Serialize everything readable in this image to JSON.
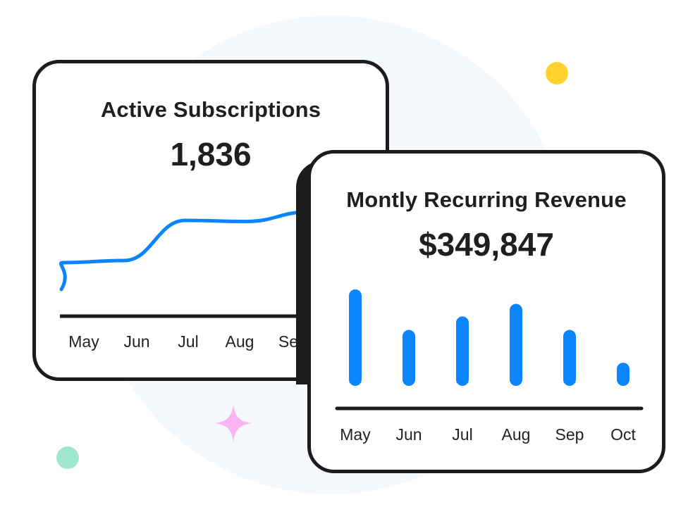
{
  "colors": {
    "accent": "#0a84ff",
    "axis": "#1c1c1c",
    "dot_yellow": "#ffd22e",
    "dot_teal": "#9ee6d0",
    "sparkle": "#f7b4f0",
    "background_circle": "#f5f8fc"
  },
  "subscriptions_card": {
    "title": "Active Subscriptions",
    "value": "1,836"
  },
  "revenue_card": {
    "title": "Montly Recurring Revenue",
    "value": "$349,847"
  },
  "chart_data": [
    {
      "type": "line",
      "categories": [
        "May",
        "Jun",
        "Jul",
        "Aug",
        "Sep"
      ],
      "tick_labels_visible": [
        "May",
        "Jun",
        "Jul",
        "Aug",
        "Se"
      ],
      "values": [
        38,
        40,
        78,
        77,
        86
      ],
      "ylim": [
        0,
        100
      ],
      "grid": false,
      "legend": "none"
    },
    {
      "type": "bar",
      "categories": [
        "May",
        "Jun",
        "Jul",
        "Aug",
        "Sep",
        "Oct"
      ],
      "values": [
        100,
        58,
        72,
        85,
        58,
        24
      ],
      "ylim": [
        0,
        100
      ],
      "grid": false,
      "legend": "none"
    }
  ]
}
